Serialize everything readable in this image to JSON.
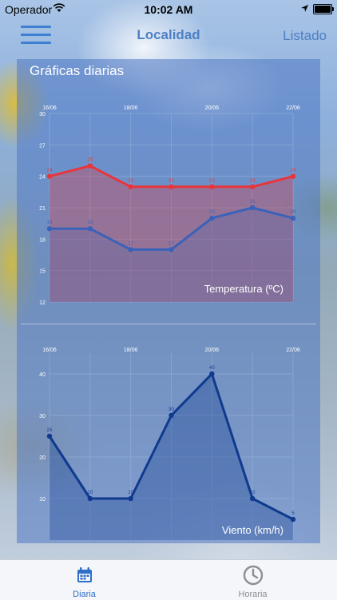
{
  "status": {
    "carrier": "Operador",
    "time": "10:02 AM"
  },
  "nav": {
    "title": "Localidad",
    "right": "Listado"
  },
  "panel": {
    "title": "Gráficas diarias"
  },
  "tabs": [
    {
      "label": "Diaria",
      "icon": "calendar-icon",
      "active": true
    },
    {
      "label": "Horaria",
      "icon": "clock-icon",
      "active": false
    }
  ],
  "colors": {
    "accent": "#3f7fd1",
    "max_series": "#e8353b",
    "min_series": "#3a62b8",
    "wind_series": "#0f3a8e"
  },
  "chart_data": [
    {
      "type": "line",
      "title": "Temperatura (ºC)",
      "x": [
        "16/06",
        "17/06",
        "18/06",
        "19/06",
        "20/06",
        "21/06",
        "22/06"
      ],
      "xtick_labels": [
        "16/06",
        "18/06",
        "20/06",
        "22/06"
      ],
      "ylim": [
        12,
        30
      ],
      "yticks": [
        "12",
        "15",
        "18",
        "21",
        "24",
        "27",
        "30"
      ],
      "series": [
        {
          "values": [
            24,
            25,
            23,
            23,
            23,
            23,
            24
          ],
          "color": "#e8353b"
        },
        {
          "values": [
            19,
            19,
            17,
            17,
            20,
            21,
            20
          ],
          "color": "#3a62b8"
        }
      ],
      "grid": true
    },
    {
      "type": "area",
      "title": "Viento (km/h)",
      "x": [
        "16/06",
        "17/06",
        "18/06",
        "19/06",
        "20/06",
        "21/06",
        "22/06"
      ],
      "xtick_labels": [
        "16/06",
        "18/06",
        "20/06",
        "22/06"
      ],
      "ylim": [
        0,
        45
      ],
      "yticks": [
        "10",
        "20",
        "30",
        "40"
      ],
      "series": [
        {
          "values": [
            25,
            10,
            10,
            30,
            40,
            10,
            5
          ],
          "color": "#0f3a8e"
        }
      ],
      "grid": true
    }
  ]
}
